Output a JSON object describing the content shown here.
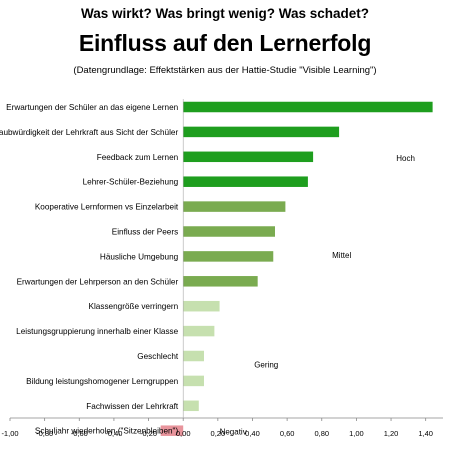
{
  "header": {
    "kicker": "Was wirkt? Was bringt wenig? Was schadet?",
    "title": "Einfluss auf den Lernerfolg",
    "subtitle": "(Datengrundlage: Effektstärken aus der Hattie-Studie \"Visible Learning\")"
  },
  "chart_data": {
    "type": "bar",
    "orientation": "horizontal",
    "categories": [
      "Erwartungen der Schüler an das eigene Lernen",
      "Glaubwürdigkeit der Lehrkraft aus Sicht der Schüler",
      "Feedback zum Lernen",
      "Lehrer-Schüler-Beziehung",
      "Kooperative Lernformen vs Einzelarbeit",
      "Einfluss der Peers",
      "Häusliche Umgebung",
      "Erwartungen der Lehrperson an den Schüler",
      "Klassengröße verringern",
      "Leistungsgruppierung innerhalb einer Klasse",
      "Geschlecht",
      "Bildung leistungshomogener Lerngruppen",
      "Fachwissen der Lehrkraft",
      "Schuljahr wiederholen (\"Sitzenbleiben\")"
    ],
    "values": [
      1.44,
      0.9,
      0.75,
      0.72,
      0.59,
      0.53,
      0.52,
      0.43,
      0.21,
      0.18,
      0.12,
      0.12,
      0.09,
      -0.13
    ],
    "groups": [
      "Hoch",
      "Hoch",
      "Hoch",
      "Hoch",
      "Mittel",
      "Mittel",
      "Mittel",
      "Mittel",
      "Gering",
      "Gering",
      "Gering",
      "Gering",
      "Gering",
      "Negativ"
    ],
    "group_colors": {
      "Hoch": "#1e9e1e",
      "Mittel": "#7aab50",
      "Gering": "#c6e0af",
      "Negativ": "#e8949c"
    },
    "annotations": [
      {
        "text": "Hoch",
        "x": 1.23,
        "row": 2
      },
      {
        "text": "Mittel",
        "x": 0.86,
        "row": 5.9
      },
      {
        "text": "Gering",
        "x": 0.41,
        "row": 10.3
      },
      {
        "text": "Negativ",
        "x": 0.21,
        "row": 13
      }
    ],
    "xlim": [
      -1.0,
      1.5
    ],
    "xticks": [
      -1.0,
      -0.8,
      -0.6,
      -0.4,
      -0.2,
      0.0,
      0.2,
      0.4,
      0.6,
      0.8,
      1.0,
      1.2,
      1.4
    ],
    "xtick_labels": [
      "-1,00",
      "-0,80",
      "-0,60",
      "-0,40",
      "-0,20",
      "0,00",
      "0,20",
      "0,40",
      "0,60",
      "0,80",
      "1,00",
      "1,20",
      "1,40"
    ],
    "grid": false,
    "legend": "none"
  }
}
